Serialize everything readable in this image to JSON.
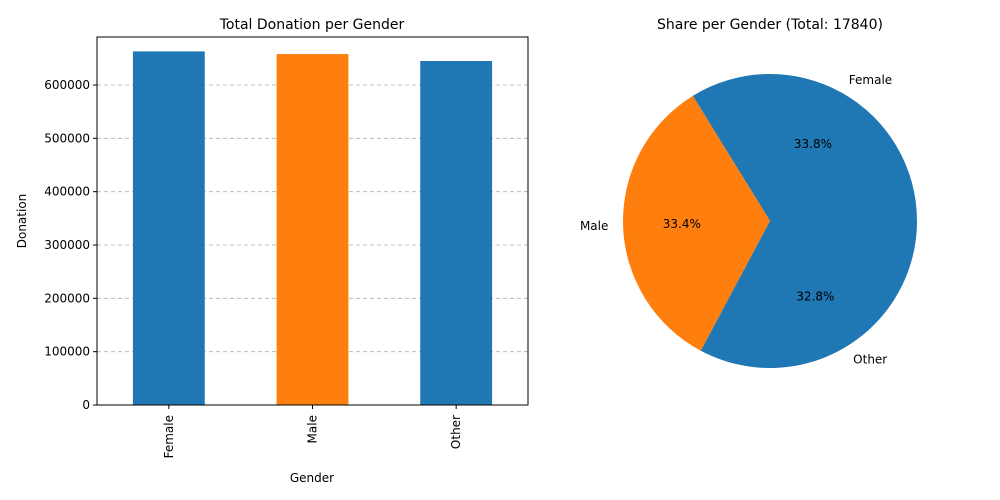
{
  "chart_data": [
    {
      "type": "bar",
      "title": "Total Donation per Gender",
      "xlabel": "Gender",
      "ylabel": "Donation",
      "categories": [
        "Female",
        "Male",
        "Other"
      ],
      "values": [
        663000,
        658000,
        645000
      ],
      "colors": [
        "#1f77b4",
        "#ff7f0e",
        "#1f77b4"
      ],
      "ylim": [
        0,
        690000
      ],
      "yticks": [
        0,
        100000,
        200000,
        300000,
        400000,
        500000,
        600000
      ],
      "ytick_labels": [
        "0",
        "100000",
        "200000",
        "300000",
        "400000",
        "500000",
        "600000"
      ],
      "grid": "y-dashed"
    },
    {
      "type": "pie",
      "title": "Share per Gender (Total: 17840)",
      "labels": [
        "Female",
        "Male",
        "Other"
      ],
      "percent_labels": [
        "33.8%",
        "33.4%",
        "32.8%"
      ],
      "values": [
        33.8,
        33.4,
        32.8
      ],
      "colors": [
        "#1f77b4",
        "#ff7f0e",
        "#1f77b4"
      ]
    }
  ]
}
